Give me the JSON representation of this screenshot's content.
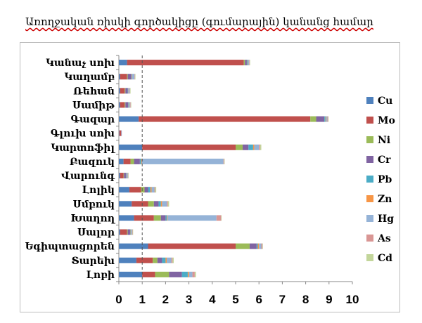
{
  "chart_data": {
    "type": "bar",
    "orientation": "horizontal",
    "stacked": true,
    "title": "Առողջական ռիսկի գործակիցը (գումարային) կանանց համար",
    "xlabel": "",
    "ylabel": "",
    "xlim": [
      0,
      10
    ],
    "xticks": [
      0,
      1,
      2,
      3,
      4,
      5,
      6,
      7,
      8,
      9,
      10
    ],
    "grid": false,
    "reference_line": {
      "x": 1,
      "style": "dashed"
    },
    "legend": {
      "position": "right"
    },
    "categories": [
      "Կանաչ սոխ",
      "Կաղամբ",
      "Ռեհան",
      "Սամիթ",
      "Գազար",
      "Գլուխ սոխ",
      "Կարտոֆիլ",
      "Բազուկ",
      "Վարունգ",
      "Լոլիկ",
      "Սմբուկ",
      "Խաղող",
      "Սալոր",
      "Եգիպտացորեն",
      "Տարեխ",
      "Լոբի"
    ],
    "series": [
      {
        "name": "Cu",
        "color": "#4f81bd",
        "values": [
          0.35,
          0.05,
          0.05,
          0.05,
          0.85,
          0.02,
          1.0,
          0.2,
          0.05,
          0.45,
          0.55,
          0.65,
          0.05,
          1.25,
          0.75,
          1.0
        ]
      },
      {
        "name": "Mo",
        "color": "#c0504d",
        "values": [
          5.0,
          0.3,
          0.2,
          0.2,
          7.35,
          0.08,
          4.0,
          0.3,
          0.15,
          0.5,
          0.7,
          0.85,
          0.3,
          3.75,
          0.7,
          0.55
        ]
      },
      {
        "name": "Ni",
        "color": "#9bbb59",
        "values": [
          0.05,
          0.03,
          0.03,
          0.03,
          0.25,
          0.0,
          0.3,
          0.15,
          0.02,
          0.15,
          0.25,
          0.3,
          0.03,
          0.6,
          0.2,
          0.6
        ]
      },
      {
        "name": "Cr",
        "color": "#8064a2",
        "values": [
          0.08,
          0.15,
          0.1,
          0.12,
          0.35,
          0.01,
          0.25,
          0.25,
          0.08,
          0.15,
          0.2,
          0.2,
          0.1,
          0.3,
          0.2,
          0.55
        ]
      },
      {
        "name": "Pb",
        "color": "#4bacc6",
        "values": [
          0.03,
          0.02,
          0.02,
          0.02,
          0.05,
          0.0,
          0.2,
          0.05,
          0.02,
          0.1,
          0.1,
          0.05,
          0.02,
          0.05,
          0.15,
          0.25
        ]
      },
      {
        "name": "Zn",
        "color": "#f79646",
        "values": [
          0.02,
          0.02,
          0.01,
          0.02,
          0.03,
          0.0,
          0.05,
          0.03,
          0.01,
          0.05,
          0.05,
          0.03,
          0.02,
          0.05,
          0.05,
          0.05
        ]
      },
      {
        "name": "Hg",
        "color": "#95b3d7",
        "values": [
          0.05,
          0.1,
          0.05,
          0.05,
          0.05,
          0.01,
          0.2,
          3.5,
          0.05,
          0.12,
          0.2,
          2.1,
          0.05,
          0.1,
          0.2,
          0.15
        ]
      },
      {
        "name": "As",
        "color": "#d99694",
        "values": [
          0.02,
          0.02,
          0.02,
          0.02,
          0.03,
          0.0,
          0.05,
          0.03,
          0.02,
          0.03,
          0.05,
          0.2,
          0.02,
          0.05,
          0.05,
          0.1
        ]
      },
      {
        "name": "Cd",
        "color": "#c3d69b",
        "values": [
          0.02,
          0.02,
          0.02,
          0.02,
          0.02,
          0.0,
          0.05,
          0.02,
          0.02,
          0.05,
          0.05,
          0.02,
          0.02,
          0.02,
          0.05,
          0.05
        ]
      }
    ]
  }
}
